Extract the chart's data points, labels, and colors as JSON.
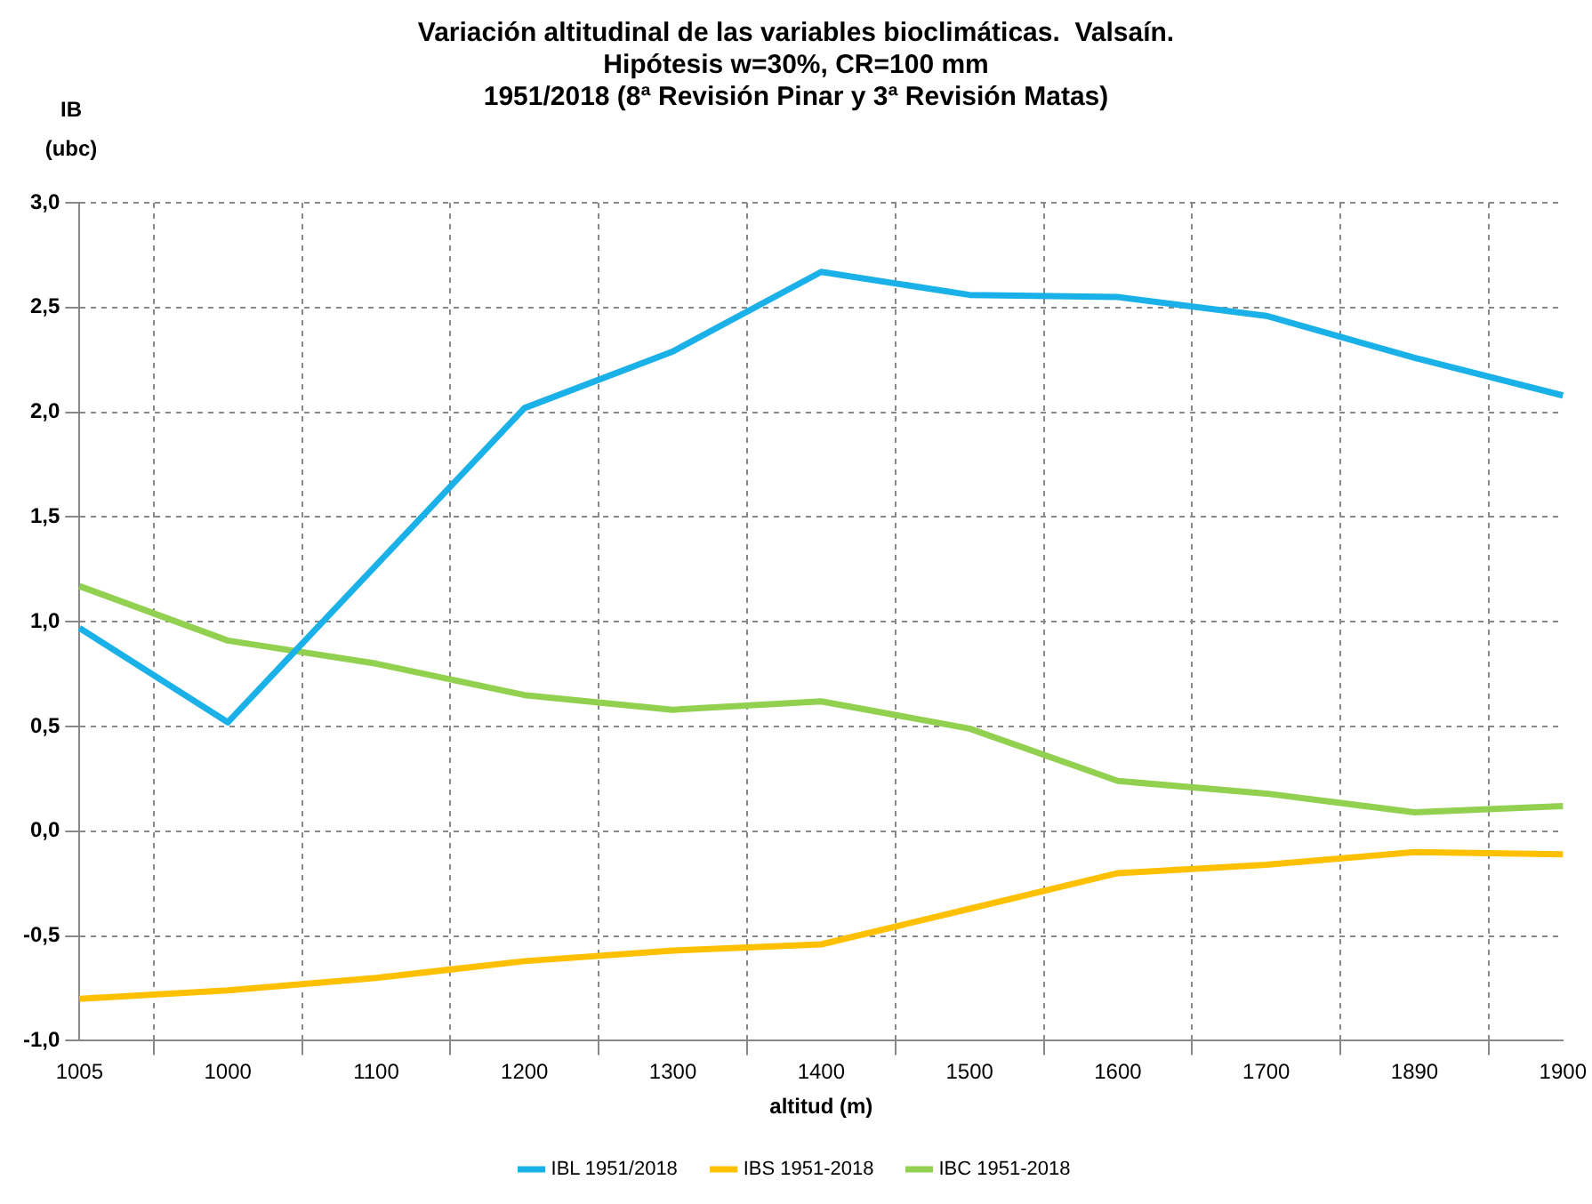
{
  "chart_data": {
    "type": "line",
    "title": "Variación altitudinal de las variables bioclimáticas.  Valsaín.",
    "subtitle": "Hipótesis w=30%, CR=100 mm\n1951/2018 (8ª Revisión Pinar y 3ª Revisión Matas)",
    "xlabel": "altitud (m)",
    "ylabel": "IB\n(ubc)",
    "categories": [
      "1005",
      "1000",
      "1100",
      "1200",
      "1300",
      "1400",
      "1500",
      "1600",
      "1700",
      "1890",
      "1900"
    ],
    "series": [
      {
        "name": "IBL 1951/2018",
        "color": "#1ab0e8",
        "values": [
          0.97,
          0.52,
          1.27,
          2.02,
          2.29,
          2.67,
          2.56,
          2.55,
          2.46,
          2.26,
          2.08
        ]
      },
      {
        "name": "IBS 1951-2018",
        "color": "#ffc000",
        "values": [
          -0.8,
          -0.76,
          -0.7,
          -0.62,
          -0.57,
          -0.54,
          -0.37,
          -0.2,
          -0.16,
          -0.1,
          -0.11
        ]
      },
      {
        "name": "IBC 1951-2018",
        "color": "#92d050",
        "values": [
          1.17,
          0.91,
          0.8,
          0.65,
          0.58,
          0.62,
          0.49,
          0.24,
          0.18,
          0.09,
          0.12
        ]
      }
    ],
    "ylim": [
      -1,
      3
    ],
    "yticks": [
      {
        "value": -1,
        "label": "-1,0"
      },
      {
        "value": -0.5,
        "label": "-0,5"
      },
      {
        "value": 0,
        "label": "0,0"
      },
      {
        "value": 0.5,
        "label": "0,5"
      },
      {
        "value": 1,
        "label": "1,0"
      },
      {
        "value": 1.5,
        "label": "1,5"
      },
      {
        "value": 2,
        "label": "2,0"
      },
      {
        "value": 2.5,
        "label": "2,5"
      },
      {
        "value": 3,
        "label": "3,0"
      }
    ],
    "grid": true,
    "legend": "bottom",
    "marker": "none",
    "line_style": "solid"
  }
}
